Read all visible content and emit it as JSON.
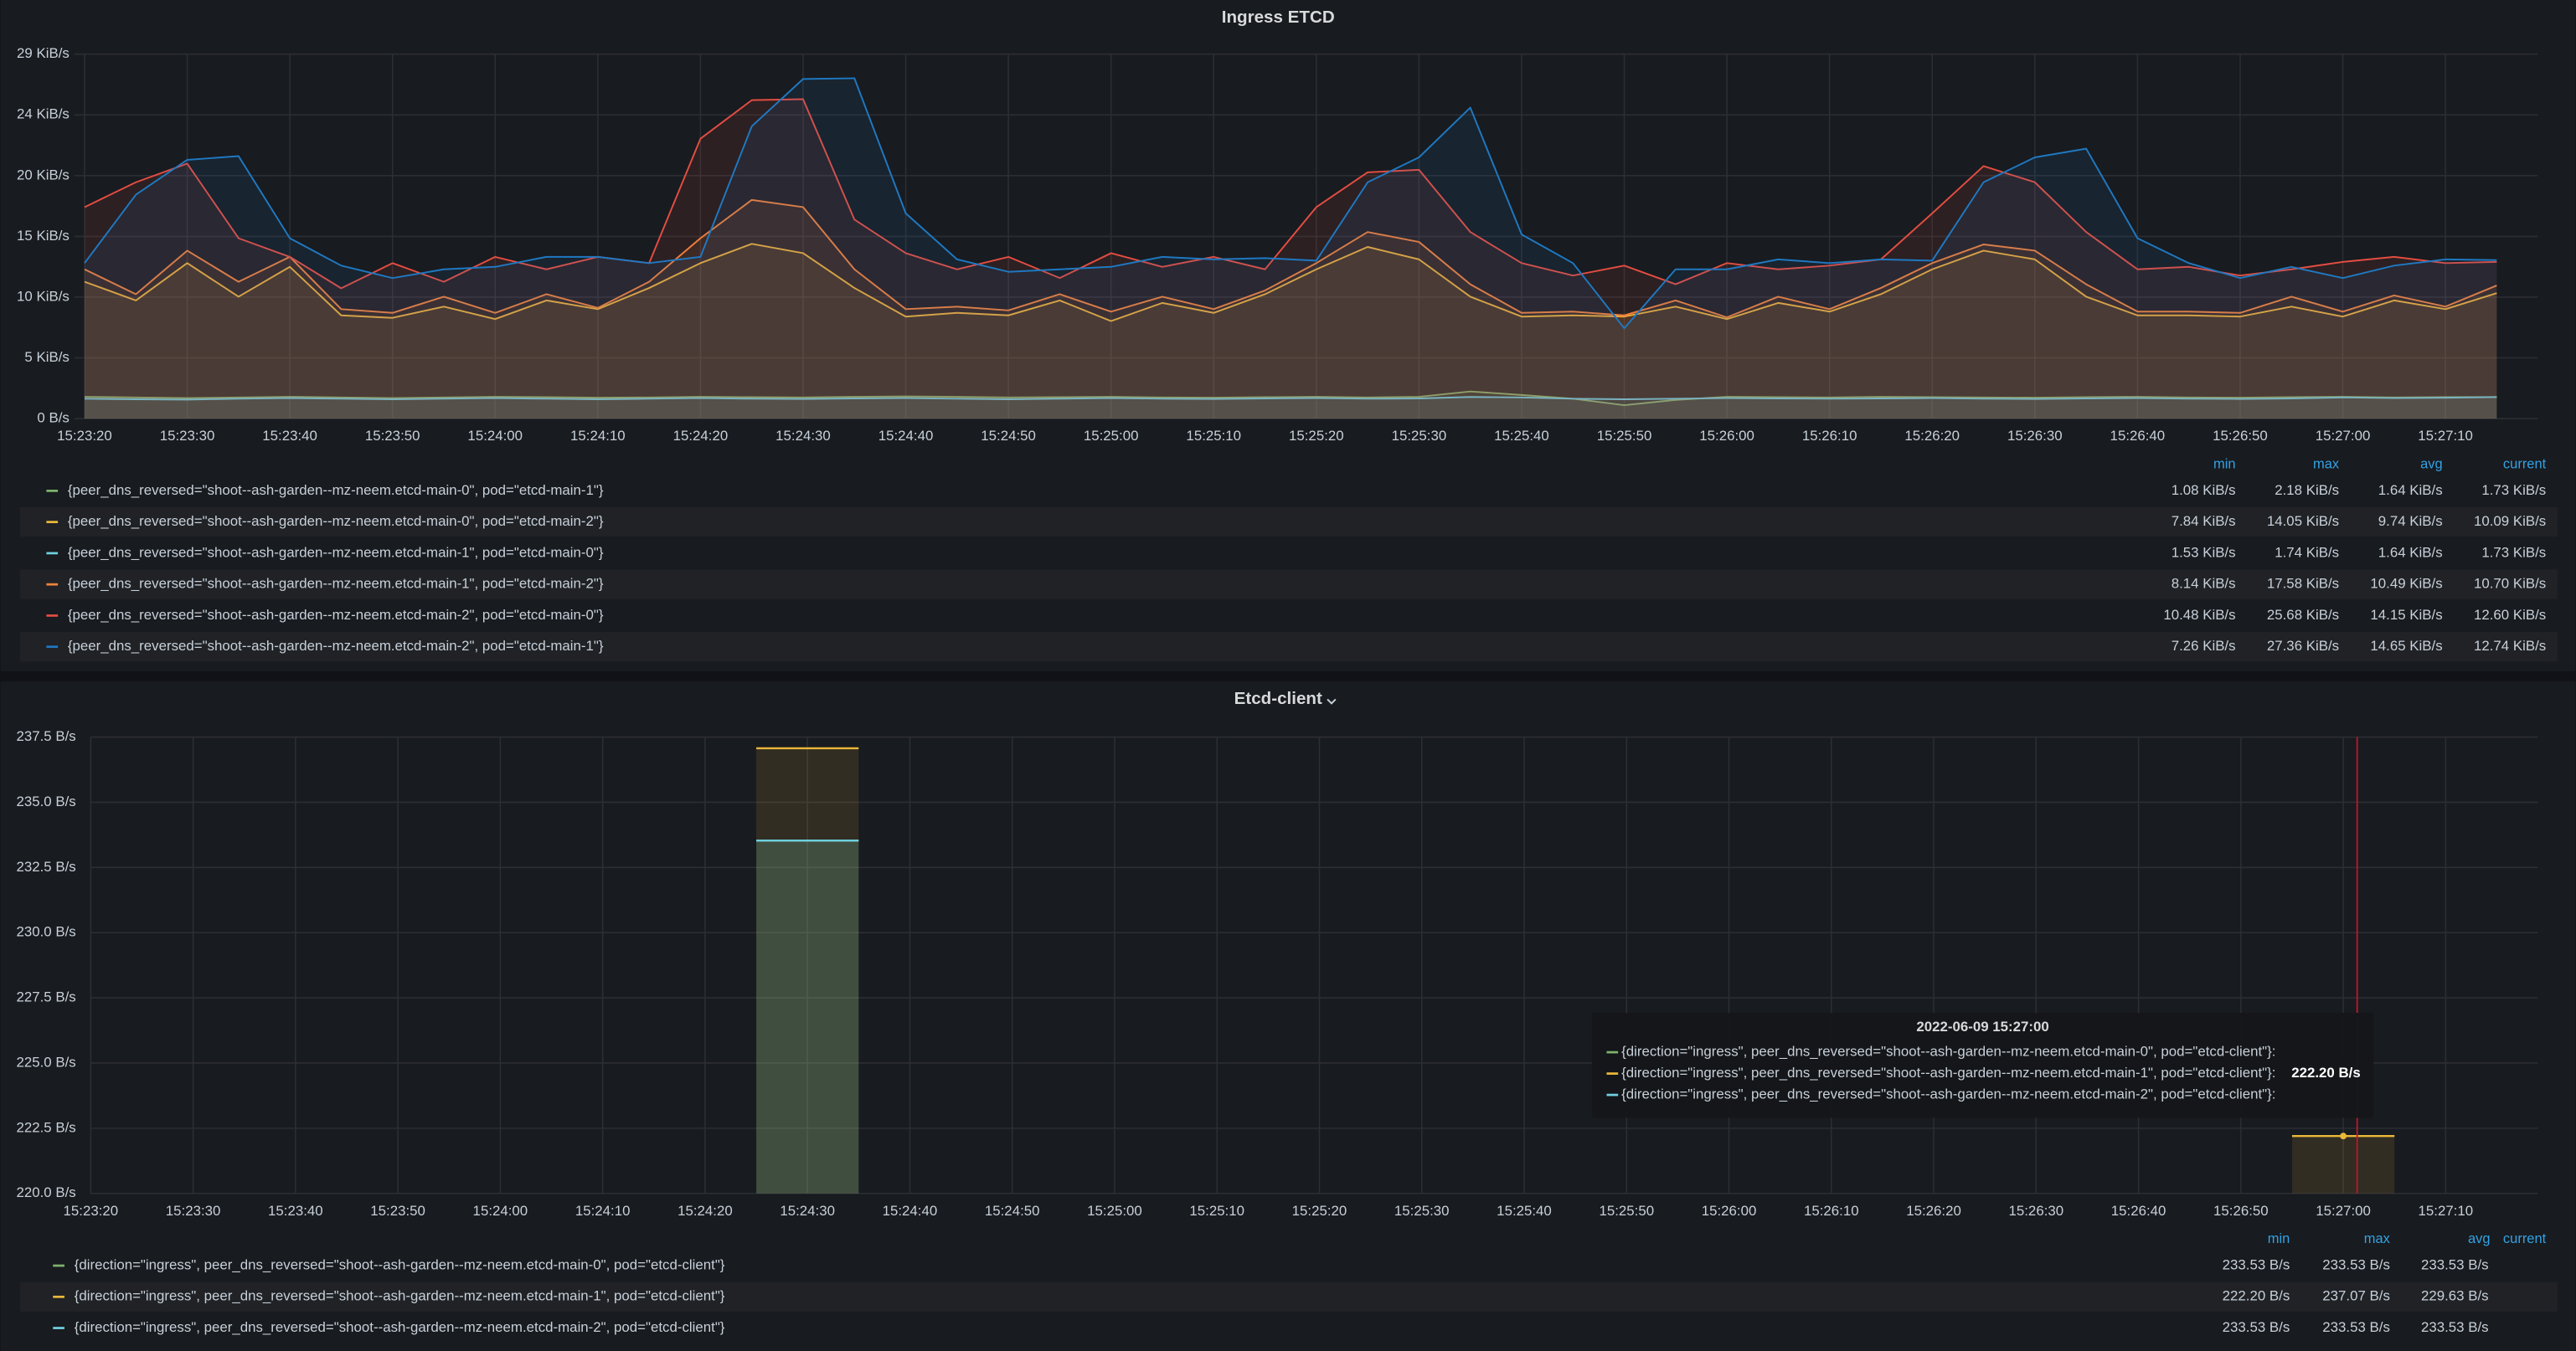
{
  "chart_data": [
    {
      "type": "line",
      "title": "Ingress ETCD",
      "x": [
        "15:23:20",
        "15:23:25",
        "15:23:30",
        "15:23:35",
        "15:23:40",
        "15:23:45",
        "15:23:50",
        "15:23:55",
        "15:24:00",
        "15:24:05",
        "15:24:10",
        "15:24:15",
        "15:24:20",
        "15:24:25",
        "15:24:30",
        "15:24:35",
        "15:24:40",
        "15:24:45",
        "15:24:50",
        "15:24:55",
        "15:25:00",
        "15:25:05",
        "15:25:10",
        "15:25:15",
        "15:25:20",
        "15:25:25",
        "15:25:30",
        "15:25:35",
        "15:25:40",
        "15:25:45",
        "15:25:50",
        "15:25:55",
        "15:26:00",
        "15:26:05",
        "15:26:10",
        "15:26:15",
        "15:26:20",
        "15:26:25",
        "15:26:30",
        "15:26:35",
        "15:26:40",
        "15:26:45",
        "15:26:50",
        "15:26:55",
        "15:27:00",
        "15:27:05",
        "15:27:10",
        "15:27:15"
      ],
      "xlim": [
        "15:23:19",
        "15:27:19"
      ],
      "xticks": [
        "15:23:20",
        "15:23:30",
        "15:23:40",
        "15:23:50",
        "15:24:00",
        "15:24:10",
        "15:24:20",
        "15:24:30",
        "15:24:40",
        "15:24:50",
        "15:25:00",
        "15:25:10",
        "15:25:20",
        "15:25:30",
        "15:25:40",
        "15:25:50",
        "15:26:00",
        "15:26:10",
        "15:26:20",
        "15:26:30",
        "15:26:40",
        "15:26:50",
        "15:27:00",
        "15:27:10"
      ],
      "ylim": [
        0,
        29.297
      ],
      "yticks": [
        {
          "value": 0,
          "label": "0 B/s"
        },
        {
          "value": 4.883,
          "label": "5 KiB/s"
        },
        {
          "value": 9.766,
          "label": "10 KiB/s"
        },
        {
          "value": 14.648,
          "label": "15 KiB/s"
        },
        {
          "value": 19.531,
          "label": "20 KiB/s"
        },
        {
          "value": 24.414,
          "label": "24 KiB/s"
        },
        {
          "value": 29.297,
          "label": "29 KiB/s"
        }
      ],
      "grid": true,
      "legend_columns": [
        "min",
        "max",
        "avg",
        "current"
      ],
      "series": [
        {
          "name": "{peer_dns_reversed=\"shoot--ash-garden--mz-neem.etcd-main-0\", pod=\"etcd-main-1\"}",
          "color": "#7eb26d",
          "values": [
            1.75,
            1.7,
            1.65,
            1.7,
            1.75,
            1.7,
            1.65,
            1.7,
            1.75,
            1.72,
            1.68,
            1.7,
            1.75,
            1.72,
            1.7,
            1.75,
            1.78,
            1.75,
            1.7,
            1.72,
            1.75,
            1.7,
            1.68,
            1.72,
            1.75,
            1.7,
            1.75,
            2.18,
            1.9,
            1.6,
            1.08,
            1.5,
            1.75,
            1.72,
            1.7,
            1.75,
            1.72,
            1.7,
            1.68,
            1.72,
            1.75,
            1.7,
            1.68,
            1.72,
            1.75,
            1.7,
            1.72,
            1.73
          ],
          "stats": [
            1.08,
            2.18,
            1.64,
            1.73
          ],
          "stat_labels": [
            "1.08 KiB/s",
            "2.18 KiB/s",
            "1.64 KiB/s",
            "1.73 KiB/s"
          ]
        },
        {
          "name": "{peer_dns_reversed=\"shoot--ash-garden--mz-neem.etcd-main-0\", pod=\"etcd-main-2\"}",
          "color": "#eab839",
          "values": [
            11.0,
            9.5,
            12.5,
            9.8,
            12.2,
            8.3,
            8.1,
            9.0,
            8.0,
            9.5,
            8.8,
            10.5,
            12.5,
            14.05,
            13.3,
            10.5,
            8.2,
            8.5,
            8.3,
            9.5,
            7.84,
            9.3,
            8.5,
            10.0,
            12.0,
            13.8,
            12.8,
            9.8,
            8.2,
            8.3,
            8.2,
            9.0,
            8.0,
            9.3,
            8.6,
            10.0,
            12.0,
            13.5,
            12.8,
            9.8,
            8.3,
            8.3,
            8.2,
            9.0,
            8.2,
            9.5,
            8.8,
            10.09
          ],
          "stats": [
            7.84,
            14.05,
            9.74,
            10.09
          ],
          "stat_labels": [
            "7.84 KiB/s",
            "14.05 KiB/s",
            "9.74 KiB/s",
            "10.09 KiB/s"
          ]
        },
        {
          "name": "{peer_dns_reversed=\"shoot--ash-garden--mz-neem.etcd-main-1\", pod=\"etcd-main-0\"}",
          "color": "#6ed0e0",
          "values": [
            1.6,
            1.55,
            1.53,
            1.6,
            1.65,
            1.6,
            1.55,
            1.6,
            1.65,
            1.6,
            1.55,
            1.6,
            1.65,
            1.6,
            1.58,
            1.62,
            1.65,
            1.6,
            1.55,
            1.6,
            1.65,
            1.6,
            1.58,
            1.62,
            1.65,
            1.6,
            1.62,
            1.74,
            1.7,
            1.6,
            1.55,
            1.6,
            1.65,
            1.62,
            1.6,
            1.62,
            1.65,
            1.6,
            1.58,
            1.62,
            1.65,
            1.6,
            1.58,
            1.62,
            1.7,
            1.65,
            1.68,
            1.73
          ],
          "stats": [
            1.53,
            1.74,
            1.64,
            1.73
          ],
          "stat_labels": [
            "1.53 KiB/s",
            "1.74 KiB/s",
            "1.64 KiB/s",
            "1.73 KiB/s"
          ]
        },
        {
          "name": "{peer_dns_reversed=\"shoot--ash-garden--mz-neem.etcd-main-1\", pod=\"etcd-main-2\"}",
          "color": "#ef843c",
          "values": [
            12.0,
            10.0,
            13.5,
            11.0,
            13.0,
            8.8,
            8.5,
            9.8,
            8.5,
            10.0,
            8.9,
            11.0,
            14.5,
            17.58,
            17.0,
            12.0,
            8.8,
            9.0,
            8.7,
            10.0,
            8.6,
            9.8,
            8.8,
            10.3,
            12.5,
            15.0,
            14.2,
            10.8,
            8.5,
            8.6,
            8.3,
            9.5,
            8.14,
            9.8,
            8.8,
            10.5,
            12.5,
            14.0,
            13.5,
            10.8,
            8.6,
            8.6,
            8.5,
            9.8,
            8.6,
            9.9,
            9.0,
            10.7
          ],
          "stats": [
            8.14,
            17.58,
            10.49,
            10.7
          ],
          "stat_labels": [
            "8.14 KiB/s",
            "17.58 KiB/s",
            "10.49 KiB/s",
            "10.70 KiB/s"
          ]
        },
        {
          "name": "{peer_dns_reversed=\"shoot--ash-garden--mz-neem.etcd-main-2\", pod=\"etcd-main-0\"}",
          "color": "#e24d42",
          "values": [
            17.0,
            19.0,
            20.5,
            14.5,
            13.0,
            10.48,
            12.5,
            11.0,
            13.0,
            12.0,
            13.0,
            12.5,
            22.5,
            25.6,
            25.68,
            16.0,
            13.3,
            12.0,
            13.0,
            11.3,
            13.3,
            12.2,
            13.0,
            12.0,
            17.0,
            19.8,
            20.0,
            15.0,
            12.5,
            11.5,
            12.3,
            10.8,
            12.5,
            12.0,
            12.3,
            12.8,
            16.5,
            20.3,
            19.0,
            15.0,
            12.0,
            12.2,
            11.5,
            12.0,
            12.6,
            13.0,
            12.5,
            12.6
          ],
          "stats": [
            10.48,
            25.68,
            14.15,
            12.6
          ],
          "stat_labels": [
            "10.48 KiB/s",
            "25.68 KiB/s",
            "14.15 KiB/s",
            "12.60 KiB/s"
          ]
        },
        {
          "name": "{peer_dns_reversed=\"shoot--ash-garden--mz-neem.etcd-main-2\", pod=\"etcd-main-1\"}",
          "color": "#1f78c1",
          "values": [
            12.5,
            18.0,
            20.8,
            21.1,
            14.5,
            12.3,
            11.3,
            12.0,
            12.2,
            13.0,
            13.0,
            12.5,
            13.0,
            23.5,
            27.3,
            27.36,
            16.5,
            12.8,
            11.8,
            12.0,
            12.2,
            13.0,
            12.8,
            12.9,
            12.7,
            19.0,
            21.0,
            25.0,
            14.8,
            12.5,
            7.26,
            12.0,
            12.0,
            12.8,
            12.5,
            12.8,
            12.7,
            19.0,
            21.0,
            21.7,
            14.5,
            12.5,
            11.3,
            12.2,
            11.3,
            12.3,
            12.8,
            12.74
          ],
          "stats": [
            7.26,
            27.36,
            14.65,
            12.74
          ],
          "stat_labels": [
            "7.26 KiB/s",
            "27.36 KiB/s",
            "14.65 KiB/s",
            "12.74 KiB/s"
          ]
        }
      ]
    },
    {
      "type": "bar",
      "title": "Etcd-client",
      "x": [
        "15:24:30",
        "15:27:00"
      ],
      "xlim": [
        "15:23:20",
        "15:27:19"
      ],
      "xticks": [
        "15:23:20",
        "15:23:30",
        "15:23:40",
        "15:23:50",
        "15:24:00",
        "15:24:10",
        "15:24:20",
        "15:24:30",
        "15:24:40",
        "15:24:50",
        "15:25:00",
        "15:25:10",
        "15:25:20",
        "15:25:30",
        "15:25:40",
        "15:25:50",
        "15:26:00",
        "15:26:10",
        "15:26:20",
        "15:26:30",
        "15:26:40",
        "15:26:50",
        "15:27:00",
        "15:27:10"
      ],
      "ylim": [
        220,
        237.5
      ],
      "yticks": [
        {
          "value": 220,
          "label": "220.0 B/s"
        },
        {
          "value": 222.5,
          "label": "222.5 B/s"
        },
        {
          "value": 225,
          "label": "225.0 B/s"
        },
        {
          "value": 227.5,
          "label": "227.5 B/s"
        },
        {
          "value": 230,
          "label": "230.0 B/s"
        },
        {
          "value": 232.5,
          "label": "232.5 B/s"
        },
        {
          "value": 235,
          "label": "235.0 B/s"
        },
        {
          "value": 237.5,
          "label": "237.5 B/s"
        }
      ],
      "grid": true,
      "legend_columns": [
        "min",
        "max",
        "avg",
        "current"
      ],
      "series": [
        {
          "name": "{direction=\"ingress\", peer_dns_reversed=\"shoot--ash-garden--mz-neem.etcd-main-0\", pod=\"etcd-client\"}",
          "color": "#7eb26d",
          "values": [
            233.53,
            null
          ],
          "stats": [
            233.53,
            233.53,
            233.53
          ],
          "stat_labels": [
            "233.53 B/s",
            "233.53 B/s",
            "233.53 B/s"
          ]
        },
        {
          "name": "{direction=\"ingress\", peer_dns_reversed=\"shoot--ash-garden--mz-neem.etcd-main-1\", pod=\"etcd-client\"}",
          "color": "#eab839",
          "values": [
            237.07,
            222.2
          ],
          "stats": [
            222.2,
            237.07,
            229.63
          ],
          "stat_labels": [
            "222.20 B/s",
            "237.07 B/s",
            "229.63 B/s"
          ]
        },
        {
          "name": "{direction=\"ingress\", peer_dns_reversed=\"shoot--ash-garden--mz-neem.etcd-main-2\", pod=\"etcd-client\"}",
          "color": "#6ed0e0",
          "values": [
            233.53,
            null
          ],
          "stats": [
            233.53,
            233.53,
            233.53
          ],
          "stat_labels": [
            "233.53 B/s",
            "233.53 B/s",
            "233.53 B/s"
          ]
        }
      ],
      "tooltip": {
        "title": "2022-06-09 15:27:00",
        "items": [
          "{direction=\"ingress\", peer_dns_reversed=\"shoot--ash-garden--mz-neem.etcd-main-0\", pod=\"etcd-client\"}:",
          "{direction=\"ingress\", peer_dns_reversed=\"shoot--ash-garden--mz-neem.etcd-main-1\", pod=\"etcd-client\"}:",
          "{direction=\"ingress\", peer_dns_reversed=\"shoot--ash-garden--mz-neem.etcd-main-2\", pod=\"etcd-client\"}:"
        ],
        "x": "15:27:00",
        "series_index": 1,
        "value": 222.2,
        "value_label": "222.20 B/s"
      }
    }
  ]
}
